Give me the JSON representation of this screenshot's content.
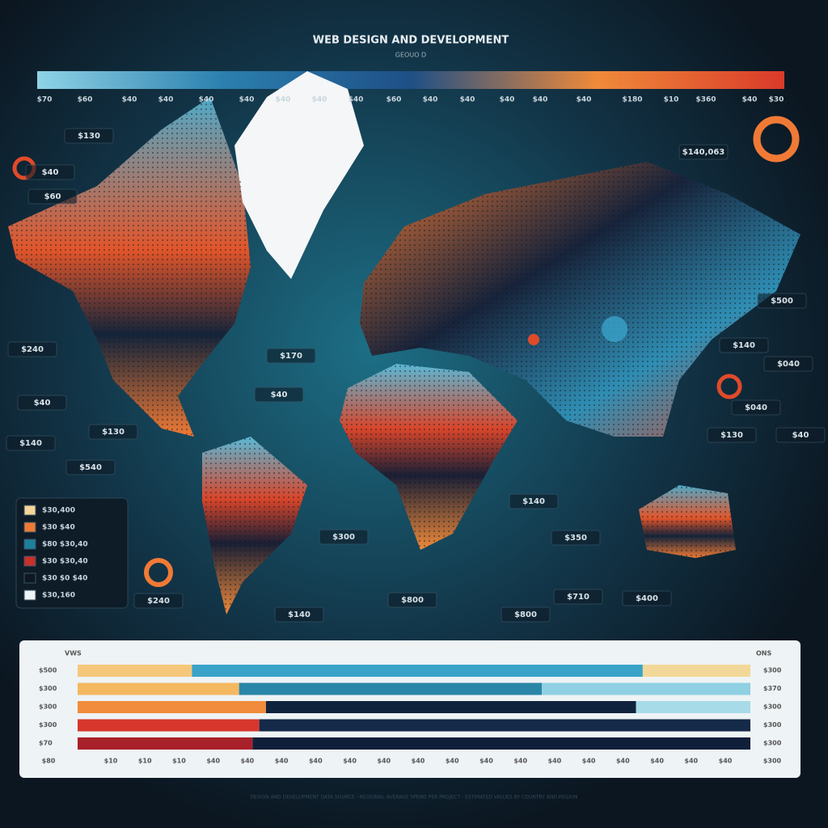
{
  "header": {
    "title": "WEB DESIGN AND DEVELOPMENT",
    "subtitle": "GEOUO D"
  },
  "scale": {
    "colors": [
      "#8fd3e6",
      "#2b7fae",
      "#1e4f86",
      "#f08a3a",
      "#d93a2a"
    ],
    "ticks": [
      "$70",
      "$60",
      "$40",
      "$40",
      "$40",
      "$40",
      "$40",
      "$40",
      "$40",
      "$60",
      "$40",
      "$40",
      "$40",
      "$40",
      "$40",
      "$180",
      "$10",
      "$360",
      "$40",
      "$30"
    ]
  },
  "map": {
    "callouts": [
      "$140,063",
      "$130",
      "$40",
      "$60",
      "$240",
      "$40",
      "$140",
      "$130",
      "$540",
      "$170",
      "$40",
      "$300",
      "$140",
      "$800",
      "$800",
      "$710",
      "$400",
      "$140",
      "$350",
      "$500",
      "$140",
      "$040",
      "$040",
      "$130",
      "$40",
      "$240"
    ]
  },
  "legend": {
    "entries": [
      {
        "label": "$30,400",
        "color": "#f6d49a"
      },
      {
        "label": "$30 $40",
        "color": "#ef7a35"
      },
      {
        "label": "$80 $30,40",
        "color": "#1d7f9c"
      },
      {
        "label": "$30 $30,40",
        "color": "#c8302a"
      },
      {
        "label": "$30 $0 $40",
        "color": "#0d1822"
      },
      {
        "label": "$30,160",
        "color": "#eef3f5"
      }
    ]
  },
  "panel": {
    "left_header": "VWS",
    "right_header": "ONS",
    "rows": [
      {
        "left": "$500",
        "right": "$300",
        "segments": [
          {
            "value": 17,
            "color": "#f4c77a"
          },
          {
            "value": 67,
            "color": "#3aa3c9"
          },
          {
            "value": 16,
            "color": "#f2d898"
          }
        ]
      },
      {
        "left": "$300",
        "right": "$370",
        "segments": [
          {
            "value": 24,
            "color": "#f4b860"
          },
          {
            "value": 45,
            "color": "#2a86a8"
          },
          {
            "value": 31,
            "color": "#8fd0e2"
          }
        ]
      },
      {
        "left": "$300",
        "right": "$300",
        "segments": [
          {
            "value": 28,
            "color": "#f08c3c"
          },
          {
            "value": 55,
            "color": "#10233e"
          },
          {
            "value": 17,
            "color": "#a8dbe8"
          }
        ]
      },
      {
        "left": "$300",
        "right": "$300",
        "segments": [
          {
            "value": 27,
            "color": "#d7372d"
          },
          {
            "value": 73,
            "color": "#142a48"
          }
        ]
      },
      {
        "left": "$70",
        "right": "$300",
        "segments": [
          {
            "value": 26,
            "color": "#a8202a"
          },
          {
            "value": 74,
            "color": "#0f1f3a"
          }
        ]
      }
    ],
    "ticks": [
      "$80",
      "$10",
      "$10",
      "$10",
      "$40",
      "$40",
      "$40",
      "$40",
      "$40",
      "$40",
      "$40",
      "$40",
      "$40",
      "$40",
      "$40",
      "$40",
      "$40",
      "$40",
      "$40",
      "$40",
      "$300"
    ]
  },
  "footer": "DESIGN AND DEVELOPMENT DATA SOURCE - REGIONAL AVERAGE SPEND PER PROJECT - ESTIMATED VALUES BY COUNTRY AND REGION"
}
